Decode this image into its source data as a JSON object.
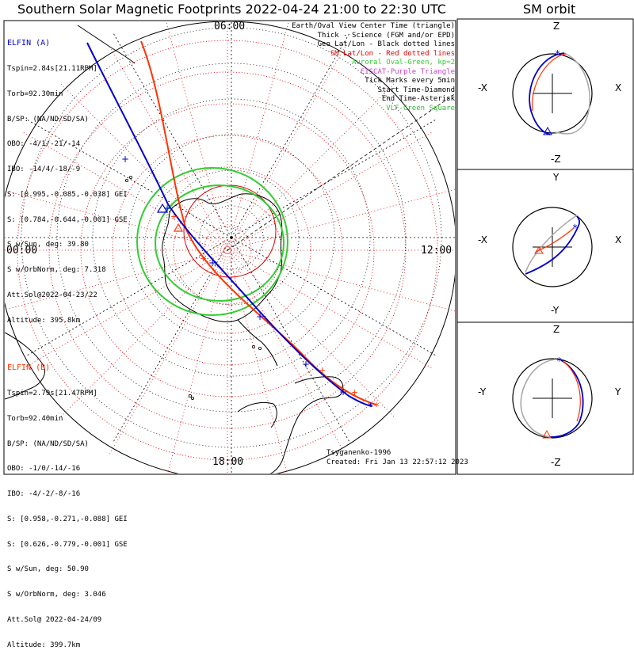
{
  "title": "Southern Solar Magnetic Footprints 2022-04-24 21:00 to 22:30 UTC",
  "orbit_title": "SM orbit",
  "colors": {
    "elfin_a": "#0000cc",
    "elfin_b": "#ff3300",
    "oval": "#33cc33",
    "grid_red": "#dd0000",
    "eiscat": "#cc44cc",
    "vlf": "#33bb33",
    "orbit_gray": "#aaaaaa"
  },
  "legend": [
    {
      "text": "Earth/Oval View Center Time (triangle)",
      "color": "#000000"
    },
    {
      "text": "Thick - Science (FGM and/or EPD)",
      "color": "#000000"
    },
    {
      "text": "Geo Lat/Lon - Black dotted lines",
      "color": "#000000"
    },
    {
      "text": "SM Lat/Lon - Red dotted lines",
      "color": "#dd0000"
    },
    {
      "text": "Auroral Oval-Green, kp=2",
      "color": "#33cc33"
    },
    {
      "text": "EISCAT-Purple Triangle",
      "color": "#cc44cc"
    },
    {
      "text": "Tick Marks every 5min",
      "color": "#000000"
    },
    {
      "text": "Start Time-Diamond",
      "color": "#000000"
    },
    {
      "text": "End Time-Asterisk",
      "color": "#000000"
    },
    {
      "text": "VLF-Green Square",
      "color": "#33bb33"
    }
  ],
  "elfin_a": {
    "name": "ELFIN (A)",
    "lines": [
      "Tspin=2.84s[21.11RPM]",
      "Torb=92.30min",
      "B/SP: (NA/ND/SD/SA)",
      "OBO: -4/1/-21/-14",
      "IBO: -14/4/-18/-9",
      "S: [0.995,-0.085,-0.038] GEI",
      "S: [0.784,-0.644,-0.001] GSE",
      "S w/Sun, deg: 39.80",
      "S w/OrbNorm, deg: 7.318",
      "Att.Sol@2022-04-23/22",
      "Altitude: 395.8km"
    ]
  },
  "elfin_b": {
    "name": "ELFIN (B)",
    "lines": [
      "Tspin=2.79s[21.47RPM]",
      "Torb=92.40min",
      "B/SP: (NA/ND/SD/SA)",
      "OBO: -1/0/-14/-16",
      "IBO: -4/-2/-8/-16",
      "S: [0.958,-0.271,-0.088] GEI",
      "S: [0.626,-0.779,-0.001] GSE",
      "S w/Sun, deg: 50.90",
      "S w/OrbNorm, deg: 3.046",
      "Att.Sol@ 2022-04-24/09",
      "Altitude: 399.7km"
    ]
  },
  "hours": {
    "top": "06:00",
    "left": "00:00",
    "right": "12:00",
    "bottom": "18:00"
  },
  "credit": {
    "author": "Tsyganenko-1996",
    "created": "Created: Fri Jan 13 22:57:12 2023"
  },
  "orbit_panels": [
    {
      "top": "Z",
      "bottom": "-Z",
      "left": "-X",
      "right": "X"
    },
    {
      "top": "Y",
      "bottom": "-Y",
      "left": "-X",
      "right": "X"
    },
    {
      "top": "Z",
      "bottom": "-Z",
      "left": "-Y",
      "right": "Y"
    }
  ]
}
